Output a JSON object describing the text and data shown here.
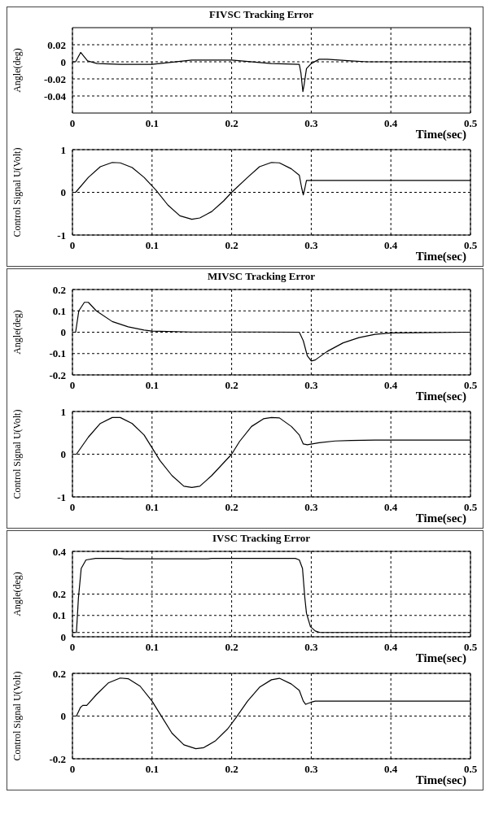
{
  "chart_data": [
    {
      "type": "line",
      "title": "FIVSC  Tracking  Error",
      "xlabel": "Time(sec)",
      "ylabel": "Angle(deg)",
      "color": "#000000",
      "grid": true,
      "marker": "none",
      "line_style": "solid",
      "legend": false,
      "xlim": [
        0,
        0.5
      ],
      "xticks": [
        0,
        0.1,
        0.2,
        0.3,
        0.4,
        0.5
      ],
      "ylim": [
        -0.06,
        0.04
      ],
      "yticks": [
        -0.04,
        -0.02,
        0,
        0.02
      ],
      "x": [
        0,
        0.004,
        0.0103,
        0.019,
        0.031,
        0.06,
        0.1,
        0.15,
        0.2,
        0.25,
        0.285,
        0.287,
        0.2895,
        0.291,
        0.294,
        0.3,
        0.31,
        0.32,
        0.35,
        0.37,
        0.5
      ],
      "values": [
        0,
        0,
        0.011,
        0.001,
        -0.002,
        -0.003,
        -0.003,
        0.002,
        0.002,
        -0.002,
        -0.003,
        -0.013,
        -0.035,
        -0.027,
        -0.008,
        -0.002,
        0.003,
        0.003,
        0.001,
        0,
        0
      ]
    },
    {
      "type": "line",
      "xlabel": "Time(sec)",
      "ylabel": "Control  Signal U(Volt)",
      "color": "#000000",
      "grid": true,
      "marker": "none",
      "line_style": "solid",
      "legend": false,
      "xlim": [
        0,
        0.5
      ],
      "xticks": [
        0,
        0.1,
        0.2,
        0.3,
        0.4,
        0.5
      ],
      "ylim": [
        -1,
        1
      ],
      "yticks": [
        -1,
        0,
        1
      ],
      "x": [
        0,
        0.004,
        0.02,
        0.035,
        0.05,
        0.06,
        0.075,
        0.09,
        0.1,
        0.105,
        0.12,
        0.135,
        0.15,
        0.16,
        0.175,
        0.19,
        0.2,
        0.22,
        0.235,
        0.25,
        0.26,
        0.275,
        0.285,
        0.288,
        0.29,
        0.292,
        0.294,
        0.5
      ],
      "values": [
        0,
        0,
        0.35,
        0.6,
        0.7,
        0.69,
        0.58,
        0.35,
        0.15,
        0.05,
        -0.3,
        -0.55,
        -0.63,
        -0.6,
        -0.45,
        -0.2,
        0,
        0.35,
        0.6,
        0.7,
        0.69,
        0.55,
        0.4,
        0.1,
        -0.06,
        0.1,
        0.28,
        0.28
      ]
    },
    {
      "type": "line",
      "title": "MIVSC  Tracking  Error",
      "xlabel": "Time(sec)",
      "ylabel": "Angle(deg)",
      "color": "#000000",
      "grid": true,
      "marker": "none",
      "line_style": "solid",
      "legend": false,
      "xlim": [
        0,
        0.5
      ],
      "xticks": [
        0,
        0.1,
        0.2,
        0.3,
        0.4,
        0.5
      ],
      "ylim": [
        -0.2,
        0.2
      ],
      "yticks": [
        -0.2,
        -0.1,
        0,
        0.1,
        0.2
      ],
      "x": [
        0,
        0.004,
        0.008,
        0.015,
        0.02,
        0.03,
        0.05,
        0.07,
        0.09,
        0.1,
        0.15,
        0.23,
        0.285,
        0.29,
        0.295,
        0.3,
        0.305,
        0.32,
        0.34,
        0.36,
        0.38,
        0.4,
        0.5
      ],
      "values": [
        0,
        0,
        0.1,
        0.14,
        0.14,
        0.1,
        0.05,
        0.025,
        0.01,
        0.005,
        0.001,
        0.001,
        0,
        -0.04,
        -0.11,
        -0.135,
        -0.13,
        -0.09,
        -0.05,
        -0.025,
        -0.01,
        -0.003,
        0
      ]
    },
    {
      "type": "line",
      "xlabel": "Time(sec)",
      "ylabel": "Control  Signal U(Volt)",
      "color": "#000000",
      "grid": true,
      "marker": "none",
      "line_style": "solid",
      "legend": false,
      "xlim": [
        0,
        0.5
      ],
      "xticks": [
        0,
        0.1,
        0.2,
        0.3,
        0.4,
        0.5
      ],
      "ylim": [
        -1,
        1
      ],
      "yticks": [
        -1,
        0,
        1
      ],
      "x": [
        0,
        0.005,
        0.02,
        0.035,
        0.05,
        0.06,
        0.075,
        0.09,
        0.1,
        0.11,
        0.125,
        0.14,
        0.15,
        0.16,
        0.175,
        0.19,
        0.2,
        0.21,
        0.225,
        0.24,
        0.25,
        0.26,
        0.275,
        0.285,
        0.29,
        0.295,
        0.31,
        0.33,
        0.35,
        0.38,
        0.5
      ],
      "values": [
        0,
        0,
        0.4,
        0.72,
        0.86,
        0.86,
        0.72,
        0.45,
        0.15,
        -0.15,
        -0.5,
        -0.75,
        -0.78,
        -0.75,
        -0.5,
        -0.2,
        0,
        0.3,
        0.65,
        0.83,
        0.86,
        0.85,
        0.65,
        0.45,
        0.24,
        0.22,
        0.27,
        0.31,
        0.32,
        0.33,
        0.33
      ]
    },
    {
      "type": "line",
      "title": "IVSC  Tracking  Error",
      "xlabel": "Time(sec)",
      "ylabel": "Angle(deg)",
      "color": "#000000",
      "grid": true,
      "marker": "none",
      "line_style": "solid",
      "legend": false,
      "xlim": [
        0,
        0.5
      ],
      "xticks": [
        0,
        0.1,
        0.2,
        0.3,
        0.4,
        0.5
      ],
      "ylim": [
        0,
        0.4
      ],
      "yticks": [
        0,
        {
          "value": 0.02,
          "label": null
        },
        0.1,
        0.2,
        0.4
      ],
      "x": [
        0,
        0.003,
        0.005,
        0.0075,
        0.011,
        0.017,
        0.029,
        0.06,
        0.065,
        0.17,
        0.175,
        0.28,
        0.285,
        0.289,
        0.292,
        0.294,
        0.299,
        0.305,
        0.311,
        0.5
      ],
      "values": [
        0.02,
        0.02,
        0.02,
        0.18,
        0.32,
        0.36,
        0.367,
        0.367,
        0.365,
        0.365,
        0.367,
        0.367,
        0.36,
        0.32,
        0.18,
        0.11,
        0.047,
        0.027,
        0.02,
        0.02
      ]
    },
    {
      "type": "line",
      "xlabel": "Time(sec)",
      "ylabel": "Control  Signal U(Volt)",
      "color": "#000000",
      "grid": true,
      "marker": "none",
      "line_style": "solid",
      "legend": false,
      "xlim": [
        0,
        0.5
      ],
      "xticks": [
        0,
        0.1,
        0.2,
        0.3,
        0.4,
        0.5
      ],
      "ylim": [
        -0.2,
        0.2
      ],
      "yticks": [
        -0.2,
        0,
        0.2
      ],
      "x": [
        0,
        0.005,
        0.01,
        0.013,
        0.018,
        0.03,
        0.045,
        0.06,
        0.07,
        0.085,
        0.1,
        0.11,
        0.125,
        0.14,
        0.155,
        0.165,
        0.18,
        0.195,
        0.205,
        0.22,
        0.235,
        0.25,
        0.26,
        0.275,
        0.285,
        0.29,
        0.293,
        0.3,
        0.305,
        0.5
      ],
      "values": [
        0,
        0,
        0.04,
        0.05,
        0.05,
        0.1,
        0.155,
        0.178,
        0.175,
        0.14,
        0.07,
        0.01,
        -0.08,
        -0.135,
        -0.153,
        -0.148,
        -0.115,
        -0.06,
        -0.01,
        0.07,
        0.135,
        0.17,
        0.177,
        0.15,
        0.12,
        0.07,
        0.055,
        0.065,
        0.07,
        0.07
      ]
    }
  ]
}
